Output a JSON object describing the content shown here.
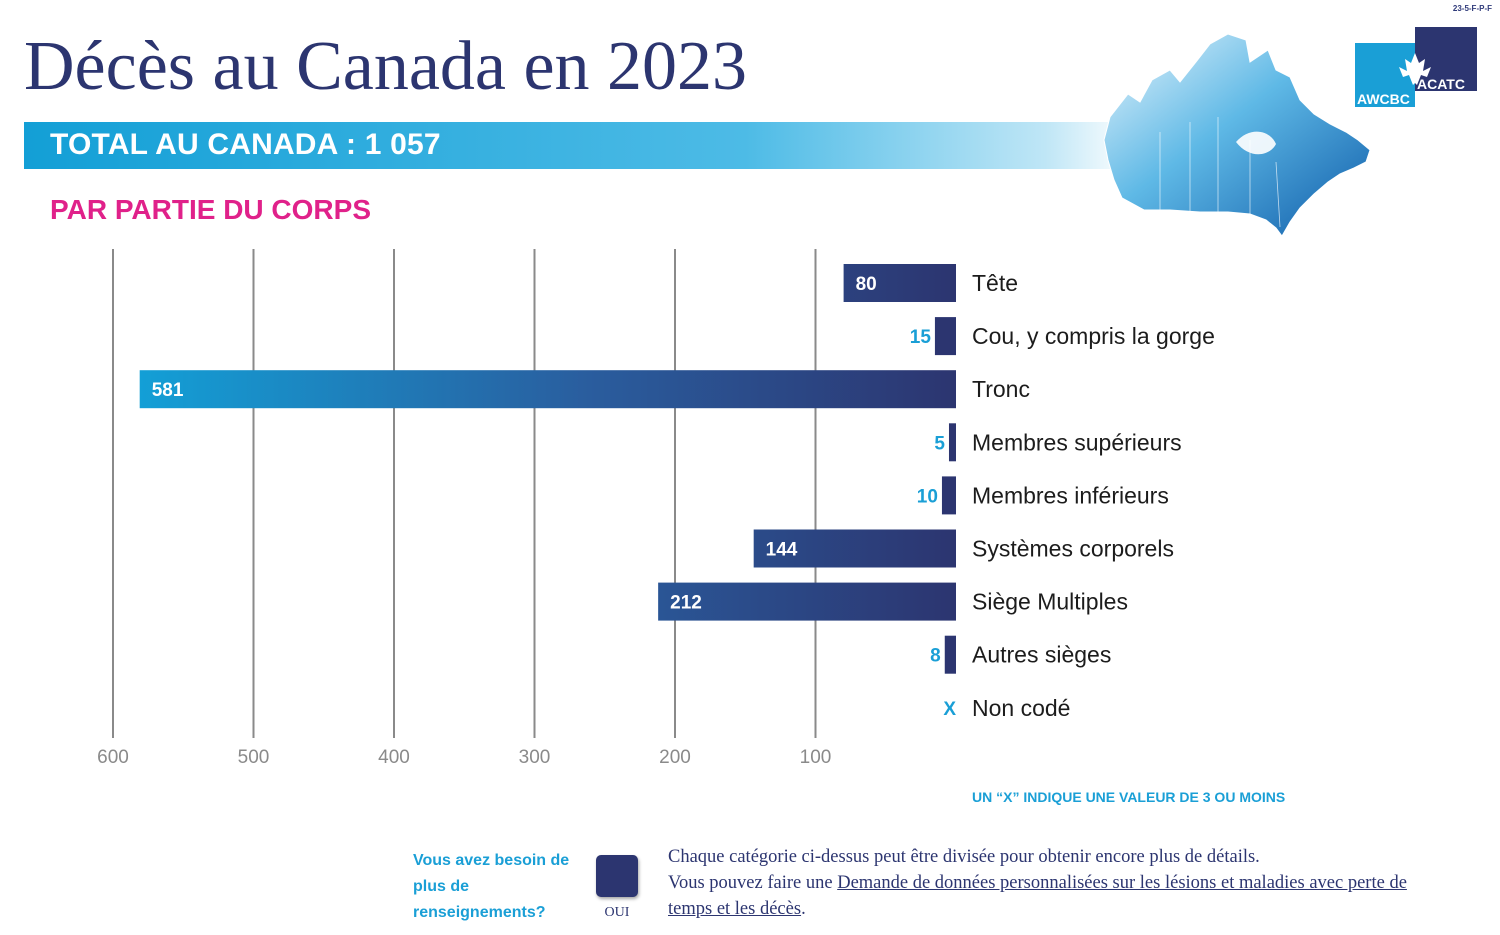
{
  "page_code": "23-5-F-P-F",
  "title": "Décès au Canada en 2023",
  "total_label": "TOTAL AU CANADA : 1 057",
  "subtitle": "PAR PARTIE DU CORPS",
  "logo": {
    "top_text": "ACATC",
    "bottom_text": "AWCBC",
    "icon": "maple-leaf-icon"
  },
  "map_icon": "canada-map-icon",
  "colors": {
    "navy": "#2c3570",
    "bright_blue": "#139fd6",
    "light_blue_text": "#1a9fd6",
    "magenta": "#e0218a",
    "grid": "#8a8a8a"
  },
  "chart_data": {
    "type": "bar",
    "orientation": "horizontal",
    "direction": "right-to-left",
    "categories": [
      "Tête",
      "Cou, y compris la gorge",
      "Tronc",
      "Membres supérieurs",
      "Membres inférieurs",
      "Systèmes corporels",
      "Siège Multiples",
      "Autres sièges",
      "Non codé"
    ],
    "values": [
      80,
      15,
      581,
      5,
      10,
      144,
      212,
      8,
      null
    ],
    "value_labels": [
      "80",
      "15",
      "581",
      "5",
      "10",
      "144",
      "212",
      "8",
      "X"
    ],
    "xticks": [
      600,
      500,
      400,
      300,
      200,
      100
    ],
    "xlim": [
      0,
      600
    ],
    "grid": true
  },
  "note": "UN “X” INDIQUE UNE VALEUR DE 3 OU MOINS",
  "footer": {
    "question": "Vous avez besoin de plus de renseignements?",
    "button_label": "OUI",
    "desc_line1": "Chaque catégorie ci-dessus peut être divisée pour obtenir encore plus de détails.",
    "desc_prefix": "Vous pouvez faire une ",
    "desc_link": "Demande de données personnalisées sur les lésions et maladies avec perte de temps et les décès",
    "desc_suffix": "."
  }
}
